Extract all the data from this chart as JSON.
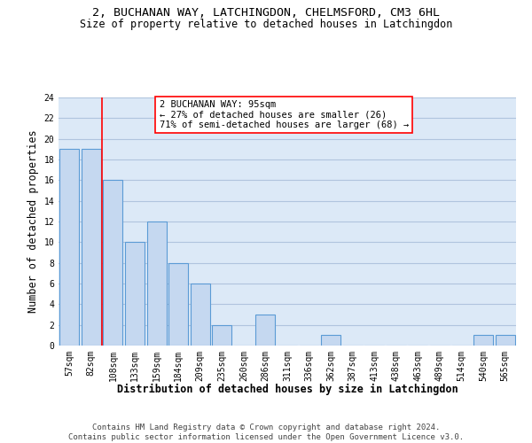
{
  "title_line1": "2, BUCHANAN WAY, LATCHINGDON, CHELMSFORD, CM3 6HL",
  "title_line2": "Size of property relative to detached houses in Latchingdon",
  "xlabel": "Distribution of detached houses by size in Latchingdon",
  "ylabel": "Number of detached properties",
  "footnote": "Contains HM Land Registry data © Crown copyright and database right 2024.\nContains public sector information licensed under the Open Government Licence v3.0.",
  "categories": [
    "57sqm",
    "82sqm",
    "108sqm",
    "133sqm",
    "159sqm",
    "184sqm",
    "209sqm",
    "235sqm",
    "260sqm",
    "286sqm",
    "311sqm",
    "336sqm",
    "362sqm",
    "387sqm",
    "413sqm",
    "438sqm",
    "463sqm",
    "489sqm",
    "514sqm",
    "540sqm",
    "565sqm"
  ],
  "values": [
    19,
    19,
    16,
    10,
    12,
    8,
    6,
    2,
    0,
    3,
    0,
    0,
    1,
    0,
    0,
    0,
    0,
    0,
    0,
    1,
    1
  ],
  "bar_color": "#c5d8f0",
  "bar_edge_color": "#5b9bd5",
  "annotation_box_text": "2 BUCHANAN WAY: 95sqm\n← 27% of detached houses are smaller (26)\n71% of semi-detached houses are larger (68) →",
  "annotation_box_color": "white",
  "annotation_box_edge_color": "red",
  "vline_x_index": 1.5,
  "vline_color": "red",
  "ylim": [
    0,
    24
  ],
  "yticks": [
    0,
    2,
    4,
    6,
    8,
    10,
    12,
    14,
    16,
    18,
    20,
    22,
    24
  ],
  "grid_color": "#b0c4de",
  "background_color": "#dce9f7",
  "title_fontsize": 9.5,
  "subtitle_fontsize": 8.5,
  "label_fontsize": 8.5,
  "tick_fontsize": 7,
  "annotation_fontsize": 7.5,
  "footnote_fontsize": 6.5
}
